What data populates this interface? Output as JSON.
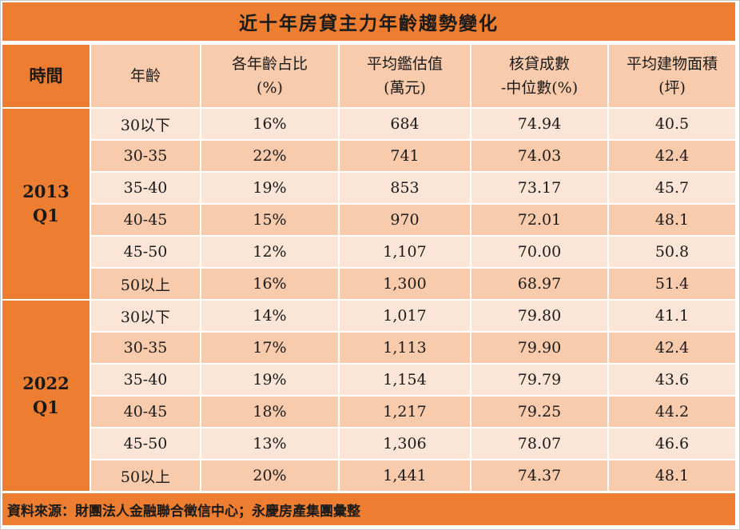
{
  "title": "近十年房貸主力年齡趨勢變化",
  "headers": {
    "time": "時間",
    "age": "年齡",
    "share": [
      "各年齡占比",
      "(%)"
    ],
    "valuation": [
      "平均鑑估值",
      "(萬元)"
    ],
    "loan_ratio": [
      "核貸成數",
      "-中位數(%)"
    ],
    "area": [
      "平均建物面積",
      "(坪)"
    ]
  },
  "groups": [
    {
      "period": [
        "2013",
        "Q1"
      ],
      "rows": [
        {
          "age": "30以下",
          "share": "16%",
          "valuation": "684",
          "loan_ratio": "74.94",
          "area": "40.5"
        },
        {
          "age": "30-35",
          "share": "22%",
          "valuation": "741",
          "loan_ratio": "74.03",
          "area": "42.4"
        },
        {
          "age": "35-40",
          "share": "19%",
          "valuation": "853",
          "loan_ratio": "73.17",
          "area": "45.7"
        },
        {
          "age": "40-45",
          "share": "15%",
          "valuation": "970",
          "loan_ratio": "72.01",
          "area": "48.1"
        },
        {
          "age": "45-50",
          "share": "12%",
          "valuation": "1,107",
          "loan_ratio": "70.00",
          "area": "50.8"
        },
        {
          "age": "50以上",
          "share": "16%",
          "valuation": "1,300",
          "loan_ratio": "68.97",
          "area": "51.4"
        }
      ]
    },
    {
      "period": [
        "2022",
        "Q1"
      ],
      "rows": [
        {
          "age": "30以下",
          "share": "14%",
          "valuation": "1,017",
          "loan_ratio": "79.80",
          "area": "41.1"
        },
        {
          "age": "30-35",
          "share": "17%",
          "valuation": "1,113",
          "loan_ratio": "79.90",
          "area": "42.4"
        },
        {
          "age": "35-40",
          "share": "19%",
          "valuation": "1,154",
          "loan_ratio": "79.79",
          "area": "43.6"
        },
        {
          "age": "40-45",
          "share": "18%",
          "valuation": "1,217",
          "loan_ratio": "79.25",
          "area": "44.2"
        },
        {
          "age": "45-50",
          "share": "13%",
          "valuation": "1,306",
          "loan_ratio": "78.07",
          "area": "46.6"
        },
        {
          "age": "50以上",
          "share": "20%",
          "valuation": "1,441",
          "loan_ratio": "74.37",
          "area": "48.1"
        }
      ]
    }
  ],
  "source": "資料來源：財團法人金融聯合徵信中心；永慶房產集團彙整",
  "colors": {
    "accent": "#ec7d31",
    "header_fill": "#f8cbad",
    "row_light": "#fbe5d6",
    "row_dark": "#f8cbad"
  }
}
